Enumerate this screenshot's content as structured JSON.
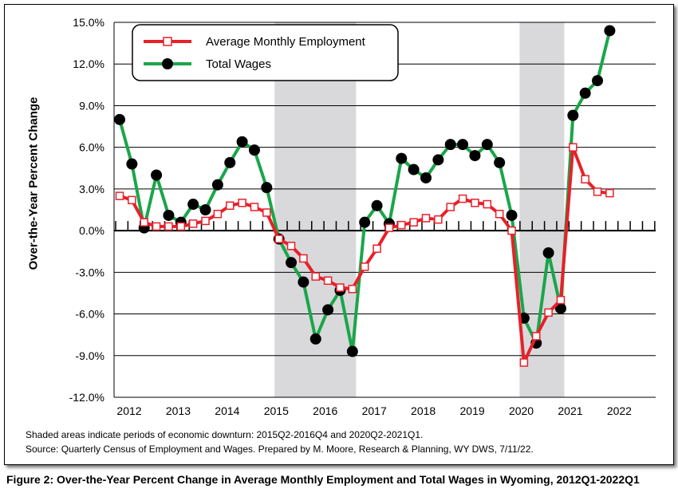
{
  "caption": "Figure 2: Over-the-Year Percent Change in Average Monthly Employment and Total Wages in Wyoming, 2012Q1-2022Q1",
  "notes": {
    "shading": "Shaded areas indicate periods of economic downturn: 2015Q2-2016Q4 and 2020Q2-2021Q1.",
    "source": "Source: Quarterly Census of Employment and Wages. Prepared by M. Moore, Research & Planning, WY DWS, 7/11/22."
  },
  "colors": {
    "employment": "#e8202a",
    "wages": "#1aa64a",
    "shade": "#d9d9db",
    "grid": "#000000"
  },
  "chart_data": {
    "type": "line",
    "ylabel": "Over-the-Year Percent Change",
    "xlabel": "",
    "ylim": [
      -12,
      15
    ],
    "yticks": [
      "-12.0%",
      "-9.0%",
      "-6.0%",
      "-3.0%",
      "0.0%",
      "3.0%",
      "6.0%",
      "9.0%",
      "12.0%",
      "15.0%"
    ],
    "xticks": [
      "2012",
      "2013",
      "2014",
      "2015",
      "2016",
      "2017",
      "2018",
      "2019",
      "2020",
      "2021",
      "2022"
    ],
    "grid": "horizontal",
    "legend": "top-left",
    "shaded_periods": [
      [
        "2015Q2",
        "2016Q4"
      ],
      [
        "2020Q2",
        "2021Q1"
      ]
    ],
    "x": [
      "2012Q1",
      "2012Q2",
      "2012Q3",
      "2012Q4",
      "2013Q1",
      "2013Q2",
      "2013Q3",
      "2013Q4",
      "2014Q1",
      "2014Q2",
      "2014Q3",
      "2014Q4",
      "2015Q1",
      "2015Q2",
      "2015Q3",
      "2015Q4",
      "2016Q1",
      "2016Q2",
      "2016Q3",
      "2016Q4",
      "2017Q1",
      "2017Q2",
      "2017Q3",
      "2017Q4",
      "2018Q1",
      "2018Q2",
      "2018Q3",
      "2018Q4",
      "2019Q1",
      "2019Q2",
      "2019Q3",
      "2019Q4",
      "2020Q1",
      "2020Q2",
      "2020Q3",
      "2020Q4",
      "2021Q1",
      "2021Q2",
      "2021Q3",
      "2021Q4",
      "2022Q1"
    ],
    "series": [
      {
        "name": "Average Monthly Employment",
        "marker": "square",
        "values": [
          2.5,
          2.2,
          0.6,
          0.3,
          0.3,
          0.3,
          0.5,
          0.7,
          1.2,
          1.8,
          2.0,
          1.7,
          1.3,
          -0.6,
          -1.1,
          -2.0,
          -3.3,
          -3.6,
          -4.1,
          -4.2,
          -2.6,
          -1.3,
          0.2,
          0.4,
          0.6,
          0.9,
          0.8,
          1.7,
          2.3,
          2.0,
          1.9,
          1.2,
          0.0,
          -9.5,
          -7.6,
          -5.9,
          -5.0,
          6.0,
          3.7,
          2.8,
          2.7
        ]
      },
      {
        "name": "Total Wages",
        "marker": "circle",
        "values": [
          8.0,
          4.8,
          0.2,
          4.0,
          1.1,
          0.6,
          1.9,
          1.5,
          3.3,
          4.9,
          6.4,
          5.8,
          3.1,
          -0.6,
          -2.3,
          -3.7,
          -7.8,
          -5.7,
          -4.3,
          -8.7,
          0.6,
          1.8,
          0.5,
          5.2,
          4.4,
          3.8,
          5.1,
          6.2,
          6.2,
          5.4,
          6.2,
          4.9,
          1.1,
          -6.3,
          -8.1,
          -1.6,
          -5.6,
          8.3,
          9.9,
          10.8,
          14.4
        ]
      }
    ]
  }
}
